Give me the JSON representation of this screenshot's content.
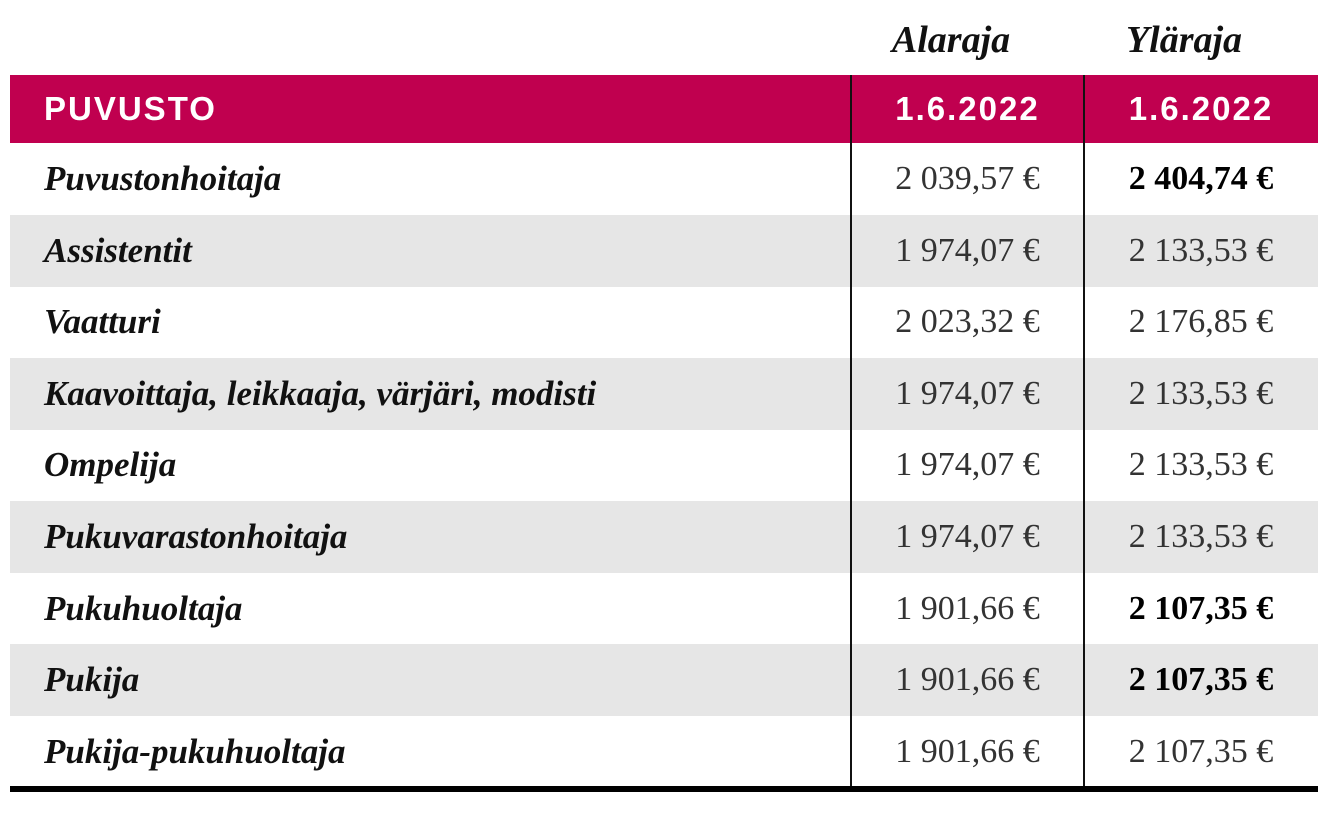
{
  "column_headers": [
    "Alaraja",
    "Yläraja"
  ],
  "table": {
    "header": [
      "PUVUSTO",
      "1.6.2022",
      "1.6.2022"
    ],
    "rows": [
      [
        "Puvustonhoitaja",
        "2 039,57 €",
        "2 404,74 €"
      ],
      [
        "Assistentit",
        "1 974,07 €",
        "2 133,53 €"
      ],
      [
        "Vaatturi",
        "2 023,32 €",
        "2 176,85 €"
      ],
      [
        "Kaavoittaja, leikkaaja, värjäri, modisti",
        "1 974,07 €",
        "2 133,53 €"
      ],
      [
        "Ompelija",
        "1 974,07 €",
        "2 133,53 €"
      ],
      [
        "Pukuvarastonhoitaja",
        "1 974,07 €",
        "2 133,53 €"
      ],
      [
        "Pukuhuoltaja",
        "1 901,66 €",
        "2 107,35 €"
      ],
      [
        "Pukija",
        "1 901,66 €",
        "2 107,35 €"
      ],
      [
        "Pukija-pukuhuoltaja",
        "1 901,66 €",
        "2 107,35 €"
      ]
    ]
  }
}
